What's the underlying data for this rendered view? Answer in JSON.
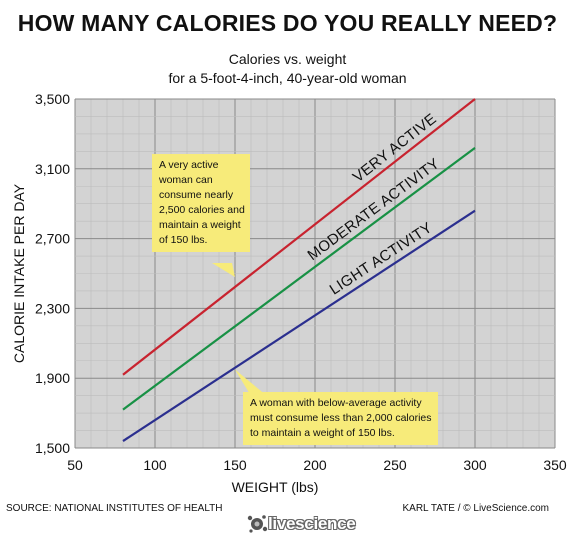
{
  "header": {
    "title": "HOW MANY CALORIES DO YOU REALLY NEED?",
    "subtitle_line1": "Calories vs. weight",
    "subtitle_line2": "for a 5-foot-4-inch, 40-year-old woman"
  },
  "callouts": {
    "very_active_lines": [
      "A very active",
      "woman can",
      "consume nearly",
      "2,500 calories and",
      "maintain a weight",
      "of 150 lbs."
    ],
    "below_average_lines": [
      "A woman with below-average activity",
      "must consume less than 2,000 calories",
      "to maintain a weight of 150 lbs."
    ]
  },
  "footer": {
    "source": "SOURCE: NATIONAL INSTITUTES OF HEALTH",
    "credit": "KARL TATE / © LiveScience.com",
    "logo_text": "livescience"
  },
  "chart_data": {
    "type": "line",
    "xlabel": "WEIGHT (lbs)",
    "ylabel": "CALORIE INTAKE PER DAY",
    "xlim": [
      50,
      350
    ],
    "ylim": [
      1500,
      3500
    ],
    "xticks": [
      50,
      100,
      150,
      200,
      250,
      300,
      350
    ],
    "yticks": [
      1500,
      1900,
      2300,
      2700,
      3100,
      3500
    ],
    "xtick_labels": [
      "50",
      "100",
      "150",
      "200",
      "250",
      "300",
      "350"
    ],
    "ytick_labels": [
      "1,500",
      "1,900",
      "2,300",
      "2,700",
      "3,100",
      "3,500"
    ],
    "grid": true,
    "background": "#d3d3d3",
    "series": [
      {
        "name": "VERY ACTIVE",
        "color": "#c8232f",
        "x": [
          80,
          300
        ],
        "y": [
          1920,
          3500
        ]
      },
      {
        "name": "MODERATE ACTIVITY",
        "color": "#189145",
        "x": [
          80,
          300
        ],
        "y": [
          1720,
          3220
        ]
      },
      {
        "name": "LIGHT ACTIVITY",
        "color": "#2b2f8f",
        "x": [
          80,
          300
        ],
        "y": [
          1540,
          2860
        ]
      }
    ],
    "annotations": [
      {
        "target_x": 150,
        "target_y": 2480
      },
      {
        "target_x": 150,
        "target_y": 1950
      }
    ]
  }
}
